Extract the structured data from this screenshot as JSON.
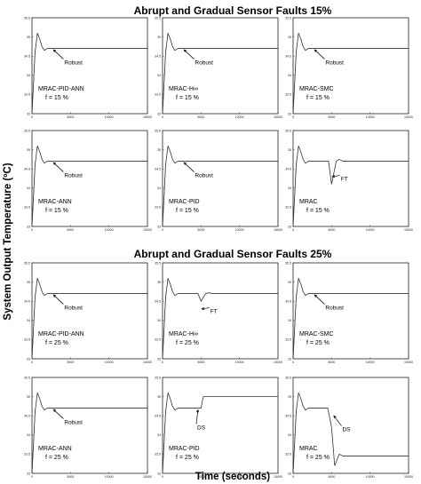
{
  "figure": {
    "title_top": "Abrupt and Gradual Sensor Faults 15%",
    "title_bottom": "Abrupt and Gradual Sensor Faults 25%",
    "ylabel": "System Output Temperature (ºC)",
    "xlabel": "Time (seconds)"
  },
  "chart_data": [
    {
      "type": "line",
      "label": "MRAC-PID-ANN",
      "f": "f = 15 %",
      "annotation": "Robust",
      "response": "robust",
      "fault_time": 5000,
      "xlim": [
        0,
        15000
      ],
      "xticks": [
        "0",
        "5000",
        "10000",
        "15000"
      ],
      "ylim": [
        33,
        35.5
      ],
      "yticks": [
        "33",
        "33.5",
        "34",
        "34.5",
        "35",
        "35.5"
      ],
      "series": [
        {
          "x": [
            0,
            400,
            700,
            1000,
            1300,
            1600,
            2000,
            3000,
            5000,
            15000
          ],
          "y": [
            33,
            34.6,
            35.1,
            34.95,
            34.75,
            34.65,
            34.7,
            34.7,
            34.7,
            34.7
          ]
        }
      ]
    },
    {
      "type": "line",
      "label": "MRAC-H∞",
      "f": "f = 15 %",
      "annotation": "Robust",
      "response": "robust",
      "fault_time": 5000,
      "xlim": [
        0,
        15000
      ],
      "xticks": [
        "0",
        "5000",
        "10000",
        "15000"
      ],
      "ylim": [
        33,
        35.5
      ],
      "yticks": [
        "33",
        "33.5",
        "34",
        "34.5",
        "35",
        "35.5"
      ],
      "series": [
        {
          "x": [
            0,
            400,
            700,
            1000,
            1300,
            1600,
            2000,
            3000,
            5000,
            15000
          ],
          "y": [
            33,
            34.6,
            35.1,
            34.95,
            34.75,
            34.65,
            34.7,
            34.7,
            34.7,
            34.7
          ]
        }
      ]
    },
    {
      "type": "line",
      "label": "MRAC-SMC",
      "f": "f = 15 %",
      "annotation": "Robust",
      "response": "robust",
      "fault_time": 5000,
      "xlim": [
        0,
        15000
      ],
      "xticks": [
        "0",
        "5000",
        "10000",
        "15000"
      ],
      "ylim": [
        33,
        35.5
      ],
      "yticks": [
        "33",
        "33.5",
        "34",
        "34.5",
        "35",
        "35.5"
      ],
      "series": [
        {
          "x": [
            0,
            400,
            700,
            1000,
            1300,
            1600,
            2000,
            3000,
            5000,
            15000
          ],
          "y": [
            33,
            34.6,
            35.1,
            34.95,
            34.75,
            34.65,
            34.7,
            34.7,
            34.7,
            34.7
          ]
        }
      ]
    },
    {
      "type": "line",
      "label": "MRAC-ANN",
      "f": "f = 15 %",
      "annotation": "Robust",
      "response": "robust",
      "fault_time": 5000,
      "xlim": [
        0,
        15000
      ],
      "xticks": [
        "0",
        "5000",
        "10000",
        "15000"
      ],
      "ylim": [
        33,
        35.5
      ],
      "yticks": [
        "33",
        "33.5",
        "34",
        "34.5",
        "35",
        "35.5"
      ],
      "series": [
        {
          "x": [
            0,
            400,
            700,
            1000,
            1300,
            1600,
            2000,
            3000,
            5000,
            15000
          ],
          "y": [
            33,
            34.6,
            35.1,
            34.95,
            34.75,
            34.65,
            34.7,
            34.7,
            34.7,
            34.7
          ]
        }
      ]
    },
    {
      "type": "line",
      "label": "MRAC-PID",
      "f": "f = 15 %",
      "annotation": "Robust",
      "response": "robust",
      "fault_time": 5000,
      "xlim": [
        0,
        15000
      ],
      "xticks": [
        "0",
        "5000",
        "10000",
        "15000"
      ],
      "ylim": [
        33,
        35.5
      ],
      "yticks": [
        "33",
        "33.5",
        "34",
        "34.5",
        "35",
        "35.5"
      ],
      "series": [
        {
          "x": [
            0,
            400,
            700,
            1000,
            1300,
            1600,
            2000,
            3000,
            5000,
            15000
          ],
          "y": [
            33,
            34.6,
            35.1,
            34.95,
            34.75,
            34.65,
            34.7,
            34.7,
            34.7,
            34.7
          ]
        }
      ]
    },
    {
      "type": "line",
      "label": "MRAC",
      "f": "f = 15 %",
      "annotation": "FT",
      "response": "ft",
      "fault_time": 5000,
      "xlim": [
        0,
        15000
      ],
      "xticks": [
        "0",
        "5000",
        "10000",
        "15000"
      ],
      "ylim": [
        33,
        35.5
      ],
      "yticks": [
        "33",
        "33.5",
        "34",
        "34.5",
        "35",
        "35.5"
      ],
      "series": [
        {
          "x": [
            0,
            400,
            700,
            1000,
            1300,
            1600,
            2000,
            3000,
            4600,
            5000,
            5300,
            5600,
            6000,
            6500,
            15000
          ],
          "y": [
            33,
            34.6,
            35.1,
            34.95,
            34.75,
            34.65,
            34.7,
            34.7,
            34.7,
            34.1,
            34.4,
            34.7,
            34.75,
            34.7,
            34.7
          ]
        }
      ]
    },
    {
      "type": "line",
      "label": "MRAC-PID-ANN",
      "f": "f = 25 %",
      "annotation": "Robust",
      "response": "robust",
      "fault_time": 5000,
      "xlim": [
        0,
        15000
      ],
      "xticks": [
        "0",
        "5000",
        "10000",
        "15000"
      ],
      "ylim": [
        33,
        35.5
      ],
      "yticks": [
        "33",
        "33.5",
        "34",
        "34.5",
        "35",
        "35.5"
      ],
      "series": [
        {
          "x": [
            0,
            400,
            700,
            1000,
            1300,
            1600,
            2000,
            3000,
            5000,
            15000
          ],
          "y": [
            33,
            34.6,
            35.1,
            34.95,
            34.75,
            34.65,
            34.7,
            34.7,
            34.7,
            34.7
          ]
        }
      ]
    },
    {
      "type": "line",
      "label": "MRAC-H∞",
      "f": "f = 25 %",
      "annotation": "FT",
      "response": "ft",
      "fault_time": 5000,
      "xlim": [
        0,
        15000
      ],
      "xticks": [
        "0",
        "5000",
        "10000",
        "15000"
      ],
      "ylim": [
        33,
        35.5
      ],
      "yticks": [
        "33",
        "33.5",
        "34",
        "34.5",
        "35",
        "35.5"
      ],
      "series": [
        {
          "x": [
            0,
            400,
            700,
            1000,
            1300,
            1600,
            2000,
            3000,
            4600,
            5000,
            5300,
            5600,
            6000,
            6500,
            15000
          ],
          "y": [
            33,
            34.6,
            35.1,
            34.95,
            34.75,
            34.65,
            34.7,
            34.7,
            34.7,
            34.5,
            34.6,
            34.7,
            34.72,
            34.7,
            34.7
          ]
        }
      ]
    },
    {
      "type": "line",
      "label": "MRAC-SMC",
      "f": "f = 25 %",
      "annotation": "Robust",
      "response": "robust",
      "fault_time": 5000,
      "xlim": [
        0,
        15000
      ],
      "xticks": [
        "0",
        "5000",
        "10000",
        "15000"
      ],
      "ylim": [
        33,
        35.5
      ],
      "yticks": [
        "33",
        "33.5",
        "34",
        "34.5",
        "35",
        "35.5"
      ],
      "series": [
        {
          "x": [
            0,
            400,
            700,
            1000,
            1300,
            1600,
            2000,
            3000,
            5000,
            15000
          ],
          "y": [
            33,
            34.6,
            35.1,
            34.95,
            34.75,
            34.65,
            34.7,
            34.7,
            34.7,
            34.7
          ]
        }
      ]
    },
    {
      "type": "line",
      "label": "MRAC-ANN",
      "f": "f = 25 %",
      "annotation": "Robust",
      "response": "robust",
      "fault_time": 5000,
      "xlim": [
        0,
        15000
      ],
      "xticks": [
        "0",
        "5000",
        "10000",
        "15000"
      ],
      "ylim": [
        33,
        35.5
      ],
      "yticks": [
        "33",
        "33.5",
        "34",
        "34.5",
        "35",
        "35.5"
      ],
      "series": [
        {
          "x": [
            0,
            400,
            700,
            1000,
            1300,
            1600,
            2000,
            3000,
            5000,
            15000
          ],
          "y": [
            33,
            34.6,
            35.1,
            34.95,
            34.75,
            34.65,
            34.7,
            34.7,
            34.7,
            34.7
          ]
        }
      ]
    },
    {
      "type": "line",
      "label": "MRAC-PID",
      "f": "f = 25 %",
      "annotation": "DS",
      "response": "ds_up",
      "fault_time": 5000,
      "xlim": [
        0,
        15000
      ],
      "xticks": [
        "0",
        "5000",
        "10000",
        "15000"
      ],
      "ylim": [
        33,
        35.5
      ],
      "yticks": [
        "33",
        "33.5",
        "34",
        "34.5",
        "35",
        "35.5"
      ],
      "series": [
        {
          "x": [
            0,
            400,
            700,
            1000,
            1300,
            1600,
            2000,
            3000,
            4600,
            5000,
            5300,
            15000
          ],
          "y": [
            33,
            34.6,
            35.1,
            34.95,
            34.75,
            34.65,
            34.7,
            34.7,
            34.7,
            34.7,
            35.0,
            35.0
          ]
        }
      ]
    },
    {
      "type": "line",
      "label": "MRAC",
      "f": "f = 25 %",
      "annotation": "DS",
      "response": "ds_down",
      "fault_time": 5000,
      "xlim": [
        0,
        15000
      ],
      "xticks": [
        "0",
        "5000",
        "10000",
        "15000"
      ],
      "ylim": [
        33,
        35.5
      ],
      "yticks": [
        "33",
        "33.5",
        "34",
        "34.5",
        "35",
        "35.5"
      ],
      "series": [
        {
          "x": [
            0,
            400,
            700,
            1000,
            1300,
            1600,
            2000,
            3000,
            4500,
            5000,
            5400,
            6000,
            6500,
            15000
          ],
          "y": [
            33,
            34.6,
            35.1,
            34.95,
            34.75,
            34.65,
            34.7,
            34.7,
            34.7,
            34.2,
            33.2,
            33.5,
            33.45,
            33.45
          ]
        }
      ]
    }
  ]
}
